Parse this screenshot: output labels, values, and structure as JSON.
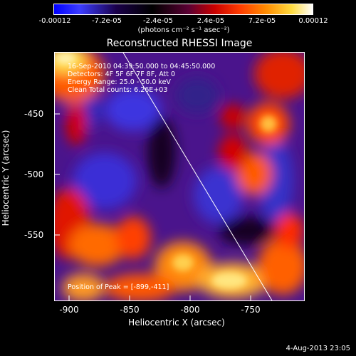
{
  "colorbar": {
    "ticks": [
      "-0.00012",
      "-7.2e-05",
      "-2.4e-05",
      "2.4e-05",
      "7.2e-05",
      "0.00012"
    ],
    "units": "(photons cm⁻² s⁻¹ asec⁻²)"
  },
  "title": "Reconstructed RHESSI Image",
  "annotations": {
    "time_range": "16-Sep-2010 04:39:50.000 to 04:45:50.000",
    "detectors": "Detectors: 4F 5F 6F 7F 8F, Att 0",
    "energy": "Energy Range: 25.0 - 50.0 keV",
    "clean": "Clean    Total counts: 6.26E+03",
    "peak": "Position of Peak = [-899,-411]"
  },
  "axes": {
    "xlabel": "Heliocentric X (arcsec)",
    "ylabel": "Heliocentric Y (arcsec)",
    "xticks": [
      "-900",
      "-850",
      "-800",
      "-750"
    ],
    "yticks": [
      "-450",
      "-500",
      "-550"
    ]
  },
  "footer": "4-Aug-2013 23:05"
}
